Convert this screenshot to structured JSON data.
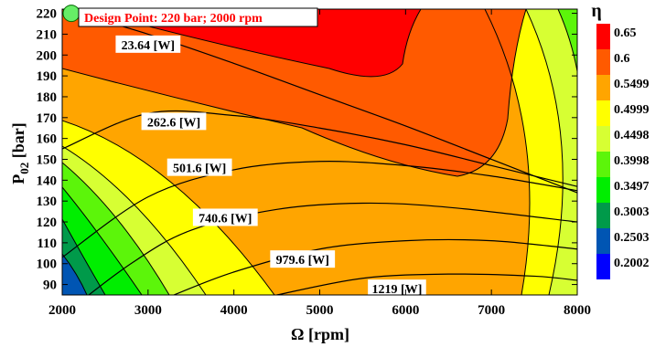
{
  "chart_data": {
    "type": "contour",
    "xlabel": "Ω [rpm]",
    "ylabel_main": "P",
    "ylabel_sub": "02",
    "ylabel_unit": " [bar]",
    "xlim": [
      2000,
      8000
    ],
    "ylim": [
      85,
      222
    ],
    "x_ticks": [
      2000,
      3000,
      4000,
      5000,
      6000,
      7000,
      8000
    ],
    "y_ticks": [
      90,
      100,
      110,
      120,
      130,
      140,
      150,
      160,
      170,
      180,
      190,
      200,
      210,
      220
    ],
    "colorbar": {
      "title": "η",
      "levels": [
        "0.65",
        "0.6",
        "0.5499",
        "0.4999",
        "0.4498",
        "0.3998",
        "0.3497",
        "0.3003",
        "0.2503",
        "0.2002"
      ],
      "colors": [
        "#ff0000",
        "#ff5a00",
        "#ffa500",
        "#ffff00",
        "#d7ff33",
        "#5cf50a",
        "#00ee00",
        "#009a4a",
        "#0055b3",
        "#0000ff"
      ]
    },
    "efficiency_field": {
      "peak_rpm": 2000,
      "peak_bar": 222,
      "peak_value": 0.67
    },
    "power_lines": [
      {
        "label": "23.64 [W]",
        "points": [
          [
            2000,
            222
          ],
          [
            3000,
            210
          ],
          [
            4000,
            196
          ],
          [
            5000,
            181
          ],
          [
            6000,
            166
          ],
          [
            7000,
            150
          ],
          [
            8000,
            134
          ]
        ]
      },
      {
        "label": "262.6 [W]",
        "points": [
          [
            2000,
            155
          ],
          [
            3000,
            172
          ],
          [
            4000,
            171
          ],
          [
            5000,
            165
          ],
          [
            6000,
            157
          ],
          [
            7000,
            147
          ],
          [
            8000,
            137
          ]
        ]
      },
      {
        "label": "501.6 [W]",
        "points": [
          [
            2000,
            103
          ],
          [
            3000,
            132
          ],
          [
            4000,
            145
          ],
          [
            5000,
            149
          ],
          [
            6000,
            147
          ],
          [
            7000,
            142
          ],
          [
            8000,
            135
          ]
        ]
      },
      {
        "label": "740.6 [W]",
        "points": [
          [
            2000,
            75
          ],
          [
            2800,
            100
          ],
          [
            3500,
            116
          ],
          [
            4500,
            126
          ],
          [
            5500,
            129
          ],
          [
            6500,
            127
          ],
          [
            8000,
            120
          ]
        ]
      },
      {
        "label": "979.6 [W]",
        "points": [
          [
            3300,
            85
          ],
          [
            4000,
            96
          ],
          [
            5000,
            107
          ],
          [
            6000,
            111
          ],
          [
            7000,
            111
          ],
          [
            8000,
            107
          ]
        ]
      },
      {
        "label": "1219 [W]",
        "points": [
          [
            4500,
            85
          ],
          [
            5500,
            93
          ],
          [
            6500,
            95
          ],
          [
            7500,
            94
          ],
          [
            8000,
            92
          ]
        ]
      }
    ],
    "design_point": {
      "rpm": 2000,
      "bar": 220,
      "label": "Design Point: 220 bar; 2000 rpm"
    }
  }
}
